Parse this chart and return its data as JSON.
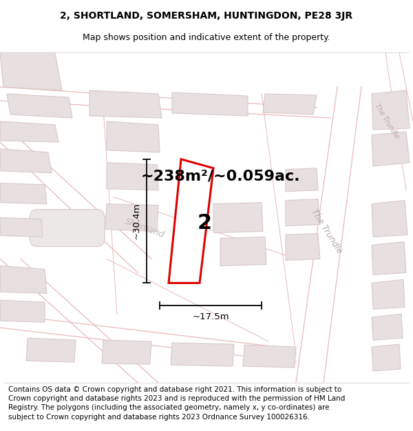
{
  "title_line1": "2, SHORTLAND, SOMERSHAM, HUNTINGDON, PE28 3JR",
  "title_line2": "Map shows position and indicative extent of the property.",
  "area_text": "~238m²/~0.059ac.",
  "label_number": "2",
  "dim_height": "~30.4m",
  "dim_width": "~17.5m",
  "footer_text": "Contains OS data © Crown copyright and database right 2021. This information is subject to Crown copyright and database rights 2023 and is reproduced with the permission of HM Land Registry. The polygons (including the associated geometry, namely x, y co-ordinates) are subject to Crown copyright and database rights 2023 Ordnance Survey 100026316.",
  "map_bg": "#f7f5f5",
  "road_line_color": "#e8b8b8",
  "building_face": "#e8e0e0",
  "building_edge": "#d8c8c8",
  "plot_color": "#dd0000",
  "street_label_color": "#c0b0b0",
  "trundle_label_color": "#b8a8a8",
  "shortland_label_color": "#c8b8b8",
  "footer_fontsize": 7.5,
  "title_fontsize": 10,
  "subtitle_fontsize": 9,
  "area_fontsize": 16,
  "dim_fontsize": 9.5,
  "number_fontsize": 22
}
